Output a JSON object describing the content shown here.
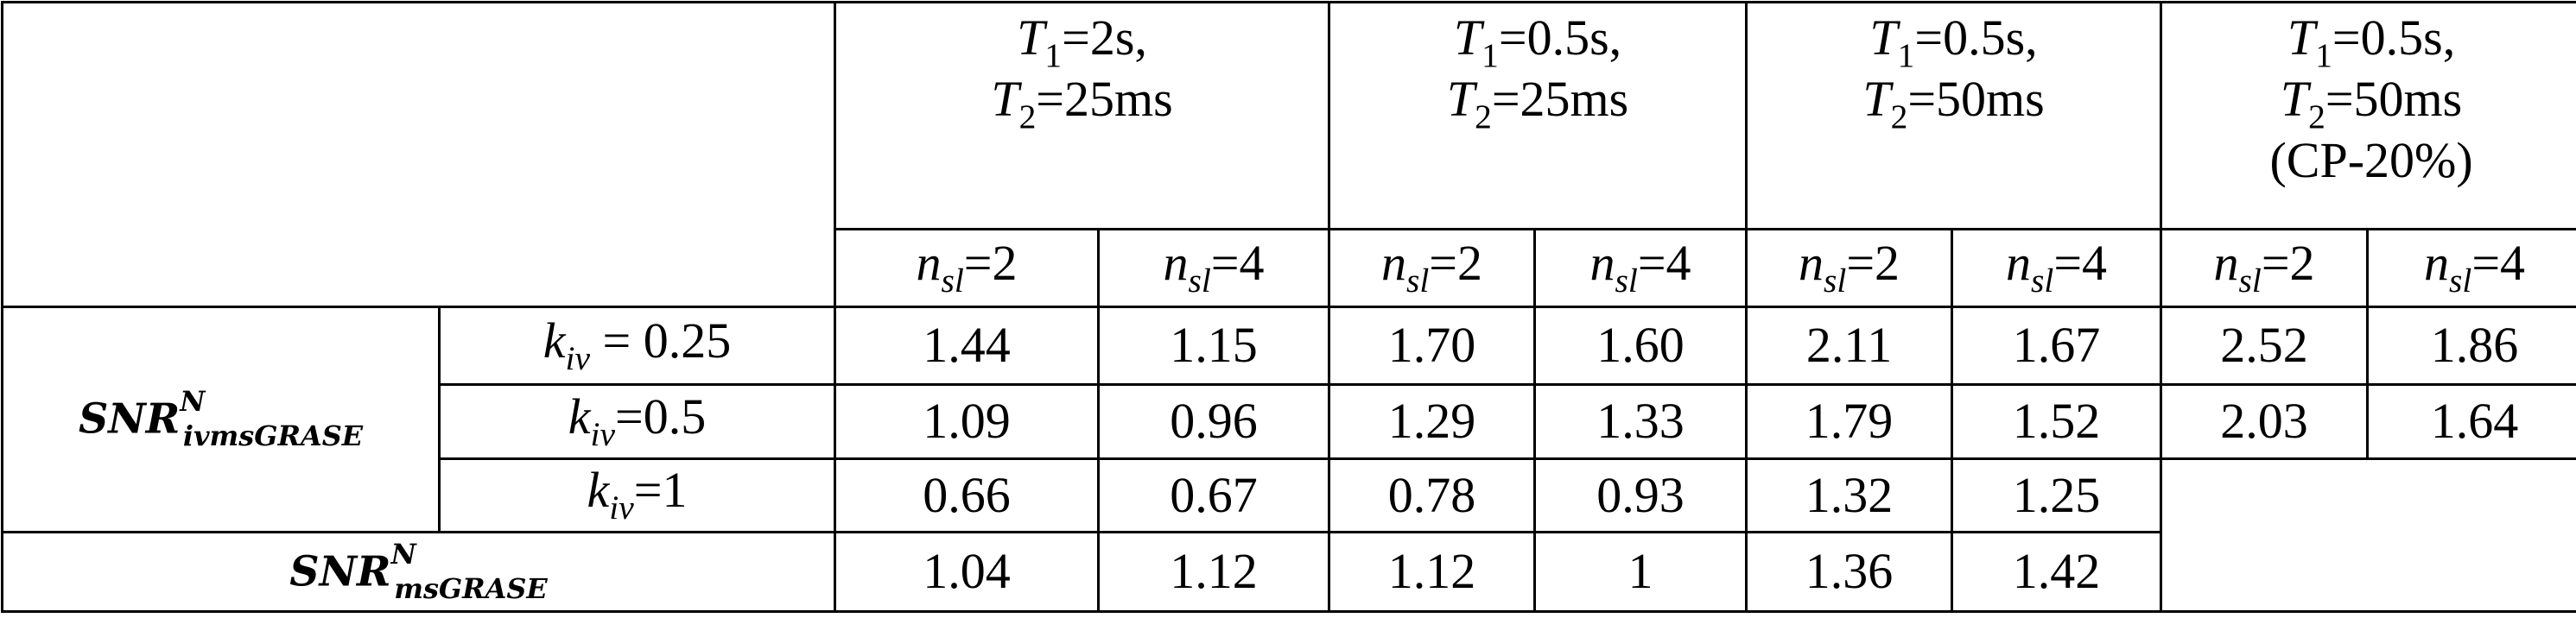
{
  "table": {
    "column_groups": [
      {
        "lines": [
          [
            {
              "text": "T",
              "style": "italic"
            },
            {
              "text": "1",
              "style": "sub"
            },
            {
              "text": "=2s,"
            }
          ],
          [
            {
              "text": "T",
              "style": "italic"
            },
            {
              "text": "2",
              "style": "sub"
            },
            {
              "text": "=25ms"
            }
          ]
        ]
      },
      {
        "lines": [
          [
            {
              "text": "T",
              "style": "italic"
            },
            {
              "text": "1",
              "style": "sub"
            },
            {
              "text": "=0.5s,"
            }
          ],
          [
            {
              "text": "T",
              "style": "italic"
            },
            {
              "text": "2",
              "style": "sub"
            },
            {
              "text": "=25ms"
            }
          ]
        ]
      },
      {
        "lines": [
          [
            {
              "text": "T",
              "style": "italic"
            },
            {
              "text": "1",
              "style": "sub"
            },
            {
              "text": "=0.5s,"
            }
          ],
          [
            {
              "text": "T",
              "style": "italic"
            },
            {
              "text": "2",
              "style": "sub"
            },
            {
              "text": "=50ms"
            }
          ]
        ]
      },
      {
        "lines": [
          [
            {
              "text": "T",
              "style": "italic"
            },
            {
              "text": "1",
              "style": "sub"
            },
            {
              "text": "=0.5s,"
            }
          ],
          [
            {
              "text": "T",
              "style": "italic"
            },
            {
              "text": "2",
              "style": "sub"
            },
            {
              "text": "=50ms"
            }
          ],
          [
            {
              "text": "(CP-20%)"
            }
          ]
        ]
      }
    ],
    "subheaders": [
      [
        {
          "text": "n",
          "style": "italic"
        },
        {
          "text": "sl",
          "style": "sub-italic"
        },
        {
          "text": "=2"
        }
      ],
      [
        {
          "text": "n",
          "style": "italic"
        },
        {
          "text": "sl",
          "style": "sub-italic"
        },
        {
          "text": "=4"
        }
      ],
      [
        {
          "text": "n",
          "style": "italic"
        },
        {
          "text": "sl",
          "style": "sub-italic"
        },
        {
          "text": "=2"
        }
      ],
      [
        {
          "text": "n",
          "style": "italic"
        },
        {
          "text": "sl",
          "style": "sub-italic"
        },
        {
          "text": "=4"
        }
      ],
      [
        {
          "text": "n",
          "style": "italic"
        },
        {
          "text": "sl",
          "style": "sub-italic"
        },
        {
          "text": "=2"
        }
      ],
      [
        {
          "text": "n",
          "style": "italic"
        },
        {
          "text": "sl",
          "style": "sub-italic"
        },
        {
          "text": "=4"
        }
      ],
      [
        {
          "text": "n",
          "style": "italic"
        },
        {
          "text": "sl",
          "style": "sub-italic"
        },
        {
          "text": "=2"
        }
      ],
      [
        {
          "text": "n",
          "style": "italic"
        },
        {
          "text": "sl",
          "style": "sub-italic"
        },
        {
          "text": "=4"
        }
      ]
    ],
    "row_group": {
      "label": [
        {
          "text": "SNR",
          "style": "bold-italic"
        },
        {
          "text": "N",
          "style": "sup-bold-italic"
        },
        {
          "text": "ivmsGRASE",
          "style": "sub-bold-italic"
        }
      ],
      "rows": [
        {
          "label": [
            {
              "text": "k",
              "style": "italic"
            },
            {
              "text": "iv",
              "style": "sub-italic"
            },
            {
              "text": " = 0.25"
            }
          ],
          "values": [
            "1.44",
            "1.15",
            "1.70",
            "1.60",
            "2.11",
            "1.67",
            "2.52",
            "1.86"
          ]
        },
        {
          "label": [
            {
              "text": "k",
              "style": "italic"
            },
            {
              "text": "iv",
              "style": "sub-italic"
            },
            {
              "text": "=0.5"
            }
          ],
          "values": [
            "1.09",
            "0.96",
            "1.29",
            "1.33",
            "1.79",
            "1.52",
            "2.03",
            "1.64"
          ]
        },
        {
          "label": [
            {
              "text": "k",
              "style": "italic"
            },
            {
              "text": "iv",
              "style": "sub-italic"
            },
            {
              "text": "=1"
            }
          ],
          "values": [
            "0.66",
            "0.67",
            "0.78",
            "0.93",
            "1.32",
            "1.25"
          ]
        }
      ]
    },
    "total_row": {
      "label": [
        {
          "text": "SNR",
          "style": "bold-italic"
        },
        {
          "text": "N",
          "style": "sup-bold-italic"
        },
        {
          "text": "msGRASE",
          "style": "sub-bold-italic"
        }
      ],
      "values": [
        "1.04",
        "1.12",
        "1.12",
        "1",
        "1.36",
        "1.42"
      ]
    }
  }
}
